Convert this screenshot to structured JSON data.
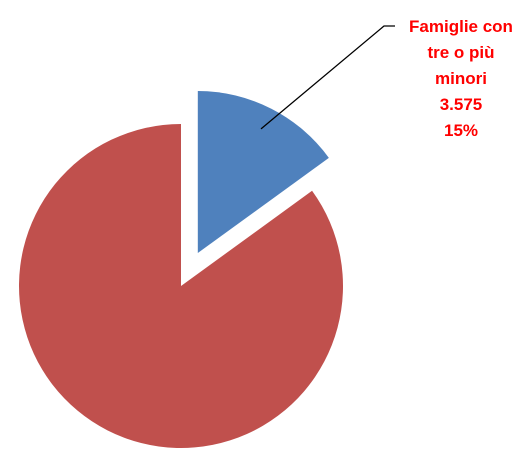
{
  "chart_data": {
    "type": "pie",
    "title": "",
    "slices": [
      {
        "label": "Famiglie con tre o più minori",
        "label_lines": [
          "Famiglie con",
          "tre o più",
          "minori"
        ],
        "value": 3575,
        "value_text": "3.575",
        "percent": 15,
        "percent_text": "15%",
        "color": "#4F81BD",
        "exploded": true,
        "show_label": true
      },
      {
        "label": "",
        "label_lines": [],
        "value": 20258,
        "value_text": "",
        "percent": 85,
        "percent_text": "",
        "color": "#C0504D",
        "exploded": false,
        "show_label": false
      }
    ],
    "label_color": "#FF0000",
    "legend": "none"
  }
}
